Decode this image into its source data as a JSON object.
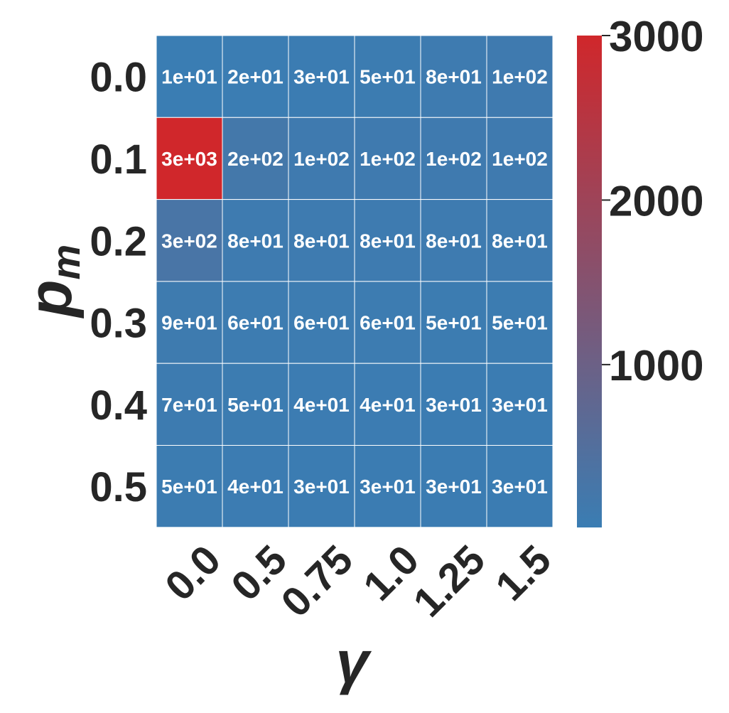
{
  "chart_data": {
    "type": "heatmap",
    "xlabel": "γ",
    "ylabel_base": "p",
    "ylabel_sub": "m",
    "x_categories": [
      "0.0",
      "0.5",
      "0.75",
      "1.0",
      "1.25",
      "1.5"
    ],
    "y_categories": [
      "0.0",
      "0.1",
      "0.2",
      "0.3",
      "0.4",
      "0.5"
    ],
    "values": [
      [
        10,
        20,
        30,
        50,
        80,
        100
      ],
      [
        3000,
        200,
        100,
        100,
        100,
        100
      ],
      [
        300,
        80,
        80,
        80,
        80,
        80
      ],
      [
        90,
        60,
        60,
        60,
        50,
        50
      ],
      [
        70,
        50,
        40,
        40,
        30,
        30
      ],
      [
        50,
        40,
        30,
        30,
        30,
        30
      ]
    ],
    "annotations": [
      [
        "1e+01",
        "2e+01",
        "3e+01",
        "5e+01",
        "8e+01",
        "1e+02"
      ],
      [
        "3e+03",
        "2e+02",
        "1e+02",
        "1e+02",
        "1e+02",
        "1e+02"
      ],
      [
        "3e+02",
        "8e+01",
        "8e+01",
        "8e+01",
        "8e+01",
        "8e+01"
      ],
      [
        "9e+01",
        "6e+01",
        "6e+01",
        "6e+01",
        "5e+01",
        "5e+01"
      ],
      [
        "7e+01",
        "5e+01",
        "4e+01",
        "4e+01",
        "3e+01",
        "3e+01"
      ],
      [
        "5e+01",
        "4e+01",
        "3e+01",
        "3e+01",
        "3e+01",
        "3e+01"
      ]
    ],
    "colorbar": {
      "min": 10,
      "max": 3000,
      "ticks": [
        1000,
        2000,
        3000
      ],
      "tick_labels": [
        "1000",
        "2000",
        "3000"
      ],
      "low_color": "#3a7db3",
      "high_color": "#d0272b"
    },
    "grid": true,
    "legend": "colorbar-right"
  }
}
